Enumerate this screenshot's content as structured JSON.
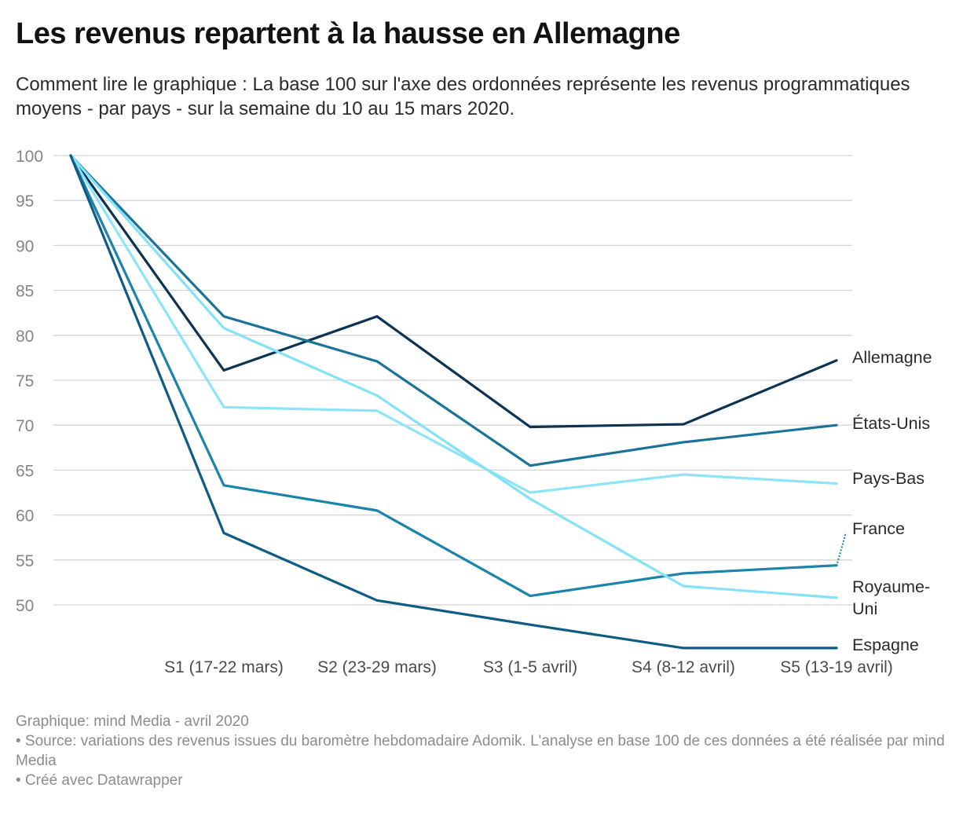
{
  "chart_data": {
    "type": "line",
    "title": "Les revenus repartent à la hausse en Allemagne",
    "subtitle": "Comment lire le graphique : La base 100 sur l'axe des ordonnées représente les revenus programmatiques moyens - par pays - sur la semaine du 10 au 15 mars 2020.",
    "categories": [
      "",
      "S1 (17-22 mars)",
      "S2 (23-29 mars)",
      "S3 (1-5 avril)",
      "S4 (8-12 avril)",
      "S5 (13-19 avril)"
    ],
    "yticks": [
      100,
      95,
      90,
      85,
      80,
      75,
      70,
      65,
      60,
      55,
      50
    ],
    "ylim": [
      45,
      100
    ],
    "grid": true,
    "series": [
      {
        "name": "Allemagne",
        "values": [
          100,
          76.1,
          82.1,
          69.8,
          70.1,
          77.2
        ],
        "color": "#0c3352"
      },
      {
        "name": "États-Unis",
        "values": [
          100,
          82.1,
          77.1,
          65.5,
          68.1,
          70.0
        ],
        "color": "#1a7399"
      },
      {
        "name": "Pays-Bas",
        "values": [
          100,
          72.0,
          71.6,
          62.5,
          64.5,
          63.5
        ],
        "color": "#8ce4f8"
      },
      {
        "name": "France",
        "values": [
          100,
          63.3,
          60.5,
          51.0,
          53.5,
          54.4
        ],
        "color": "#1a84ab"
      },
      {
        "name": "Royaume-Uni",
        "values": [
          100,
          80.8,
          73.3,
          61.8,
          52.1,
          50.8
        ],
        "color": "#84e2f8"
      },
      {
        "name": "Espagne",
        "values": [
          100,
          58.0,
          50.5,
          47.8,
          45.2,
          45.2
        ],
        "color": "#0e5b85"
      }
    ]
  },
  "footer": {
    "credit": "Graphique: mind Media - avril 2020",
    "source": "• Source: variations des revenus issues du baromètre hebdomadaire Adomik. L'analyse en base 100 de ces données a été réalisée par mind Media",
    "tool": "• Créé avec Datawrapper"
  }
}
